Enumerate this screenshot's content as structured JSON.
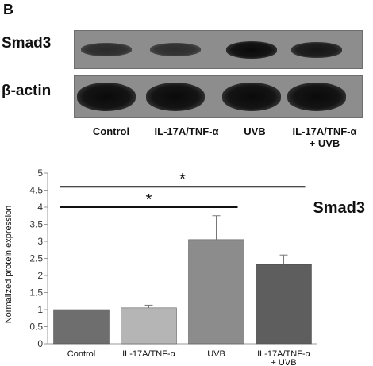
{
  "panel_label": "B",
  "blot": {
    "rows": [
      {
        "label": "Smad3",
        "intensities": [
          0.45,
          0.4,
          1.0,
          0.8
        ]
      },
      {
        "label": "β-actin",
        "intensities": [
          1.0,
          1.0,
          1.0,
          1.0
        ]
      }
    ],
    "lanes": [
      {
        "line1": "Control",
        "line2": ""
      },
      {
        "line1": "IL-17A/TNF-α",
        "line2": ""
      },
      {
        "line1": "UVB",
        "line2": ""
      },
      {
        "line1": "IL-17A/TNF-α",
        "line2": "+ UVB"
      }
    ]
  },
  "chart_data": {
    "type": "bar",
    "title": "Smad3",
    "ylabel": "Normalized protein expression",
    "xlabel": "",
    "categories": [
      {
        "line1": "Control",
        "line2": ""
      },
      {
        "line1": "IL-17A/TNF-α",
        "line2": ""
      },
      {
        "line1": "UVB",
        "line2": ""
      },
      {
        "line1": "IL-17A/TNF-α",
        "line2": "+ UVB"
      }
    ],
    "values": [
      1.0,
      1.05,
      3.05,
      2.32
    ],
    "errors": [
      0.0,
      0.08,
      0.7,
      0.28
    ],
    "bar_colors": [
      "#6e6e6e",
      "#b5b5b5",
      "#8c8c8c",
      "#5e5e5e"
    ],
    "ylim": [
      0,
      5
    ],
    "yticks": [
      "0",
      "0.5",
      "1",
      "1.5",
      "2",
      "2.5",
      "3",
      "3.5",
      "4",
      "4.5",
      "5"
    ],
    "grid": false,
    "significance": [
      {
        "from": 0,
        "to": 3,
        "label": "*",
        "level": 4.6
      },
      {
        "from": 0,
        "to": 2,
        "label": "*",
        "level": 4.0
      }
    ]
  }
}
